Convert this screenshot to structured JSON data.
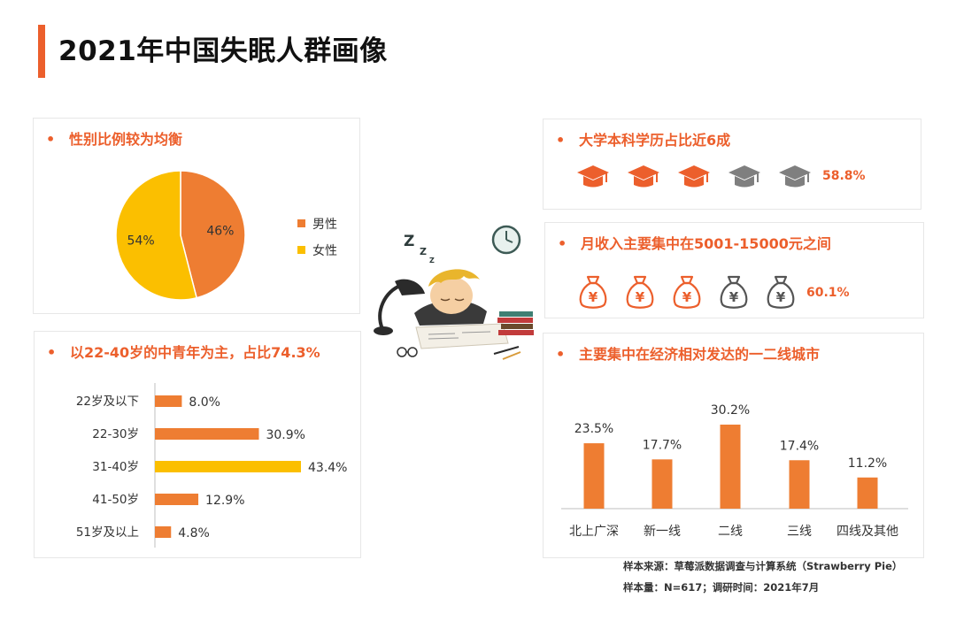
{
  "page": {
    "title": "2021年中国失眠人群画像"
  },
  "colors": {
    "accent": "#ec5f2c",
    "bar": "#ee7d32",
    "highlight": "#fbbf00",
    "gray": "#7f7f7f"
  },
  "gender": {
    "heading": "性别比例较为均衡",
    "bullet": "•",
    "legend": [
      {
        "label": "男性",
        "color": "#ee7d32"
      },
      {
        "label": "女性",
        "color": "#fbbf00"
      }
    ]
  },
  "education": {
    "heading": "大学本科学历占比近6成",
    "bullet": "•",
    "icon": "graduation-cap-icon",
    "icons_filled": 3,
    "icons_total": 5,
    "percent_label": "58.8%"
  },
  "income": {
    "heading": "月收入主要集中在5001-15000元之间",
    "bullet": "•",
    "icon": "money-bag-icon",
    "icon_glyph": "¥",
    "icons_filled": 3,
    "icons_total": 5,
    "percent_label": "60.1%"
  },
  "age": {
    "heading": "以22-40岁的中青年为主，占比74.3%",
    "bullet": "•"
  },
  "city": {
    "heading": "主要集中在经济相对发达的一二线城市",
    "bullet": "•"
  },
  "illustration": {
    "icon": "sleeping-student-icon"
  },
  "footnote": {
    "source": "样本来源：草莓派数据调查与计算系统（Strawberry Pie）",
    "sample": "样本量：N=617；调研时间：2021年7月"
  },
  "chart_data": [
    {
      "type": "pie",
      "categories": [
        "男性",
        "女性"
      ],
      "values": [
        46,
        54
      ],
      "labels": [
        "46%",
        "54%"
      ],
      "colors": [
        "#ee7d32",
        "#fbbf00"
      ],
      "legend": "right"
    },
    {
      "type": "bar",
      "orientation": "horizontal",
      "categories": [
        "22岁及以下",
        "22-30岁",
        "31-40岁",
        "41-50岁",
        "51岁及以上"
      ],
      "values": [
        8.0,
        30.9,
        43.4,
        12.9,
        4.8
      ],
      "labels": [
        "8.0%",
        "30.9%",
        "43.4%",
        "12.9%",
        "4.8%"
      ],
      "highlight": "31-40岁",
      "grid": false
    },
    {
      "type": "bar",
      "orientation": "vertical",
      "categories": [
        "北上广深",
        "新一线",
        "二线",
        "三线",
        "四线及其他"
      ],
      "values": [
        23.5,
        17.7,
        30.2,
        17.4,
        11.2
      ],
      "labels": [
        "23.5%",
        "17.7%",
        "30.2%",
        "17.4%",
        "11.2%"
      ],
      "grid": false
    }
  ]
}
